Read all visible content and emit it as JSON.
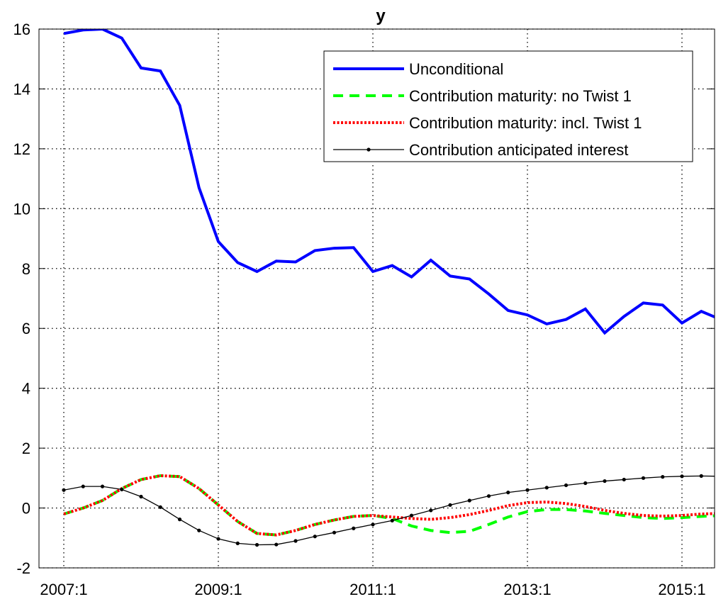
{
  "chart_data": {
    "type": "line",
    "title": "y",
    "categories": [
      "2007:1",
      null,
      null,
      null,
      null,
      null,
      null,
      null,
      "2009:1",
      null,
      null,
      null,
      null,
      null,
      null,
      null,
      "2011:1",
      null,
      null,
      null,
      null,
      null,
      null,
      null,
      "2013:1",
      null,
      null,
      null,
      null,
      null,
      null,
      null,
      "2015:1",
      null,
      null
    ],
    "series": [
      {
        "name": "Unconditional",
        "color": "#0000ff",
        "style": "solid",
        "width": 4,
        "values": [
          15.85,
          15.97,
          16.0,
          15.7,
          14.7,
          14.6,
          13.45,
          10.7,
          8.9,
          8.2,
          7.9,
          8.25,
          8.22,
          8.6,
          8.68,
          8.7,
          7.9,
          8.1,
          7.72,
          8.28,
          7.75,
          7.65,
          7.15,
          6.6,
          6.45,
          6.15,
          6.3,
          6.65,
          5.85,
          6.4,
          6.85,
          6.78,
          6.18,
          6.57,
          6.3
        ]
      },
      {
        "name": "Contribution maturity: no Twist 1",
        "color": "#00ff00",
        "style": "dashed",
        "width": 4,
        "values": [
          -0.2,
          0.0,
          0.25,
          0.65,
          0.95,
          1.08,
          1.05,
          0.65,
          0.1,
          -0.45,
          -0.85,
          -0.9,
          -0.75,
          -0.55,
          -0.4,
          -0.28,
          -0.25,
          -0.35,
          -0.6,
          -0.75,
          -0.82,
          -0.78,
          -0.55,
          -0.3,
          -0.12,
          -0.05,
          -0.05,
          -0.1,
          -0.18,
          -0.25,
          -0.32,
          -0.35,
          -0.32,
          -0.28,
          -0.25
        ]
      },
      {
        "name": "Contribution maturity: incl. Twist 1",
        "color": "#ff0000",
        "style": "dotted",
        "width": 4,
        "values": [
          -0.2,
          0.0,
          0.25,
          0.65,
          0.95,
          1.08,
          1.05,
          0.65,
          0.1,
          -0.45,
          -0.85,
          -0.9,
          -0.75,
          -0.55,
          -0.4,
          -0.28,
          -0.25,
          -0.3,
          -0.35,
          -0.38,
          -0.32,
          -0.22,
          -0.08,
          0.08,
          0.18,
          0.2,
          0.15,
          0.05,
          -0.08,
          -0.18,
          -0.25,
          -0.27,
          -0.25,
          -0.2,
          -0.18
        ]
      },
      {
        "name": "Contribution anticipated interest",
        "color": "#000000",
        "style": "dots",
        "width": 1.3,
        "values": [
          0.6,
          0.72,
          0.72,
          0.62,
          0.38,
          0.03,
          -0.38,
          -0.75,
          -1.03,
          -1.18,
          -1.23,
          -1.22,
          -1.1,
          -0.95,
          -0.82,
          -0.68,
          -0.55,
          -0.42,
          -0.25,
          -0.08,
          0.1,
          0.25,
          0.4,
          0.52,
          0.6,
          0.68,
          0.76,
          0.83,
          0.9,
          0.95,
          1.0,
          1.04,
          1.06,
          1.07,
          1.06
        ]
      }
    ],
    "ylim": [
      -2,
      16
    ],
    "yticks": [
      -2,
      0,
      2,
      4,
      6,
      8,
      10,
      12,
      14,
      16
    ],
    "grid": true,
    "legend": "upper right"
  }
}
